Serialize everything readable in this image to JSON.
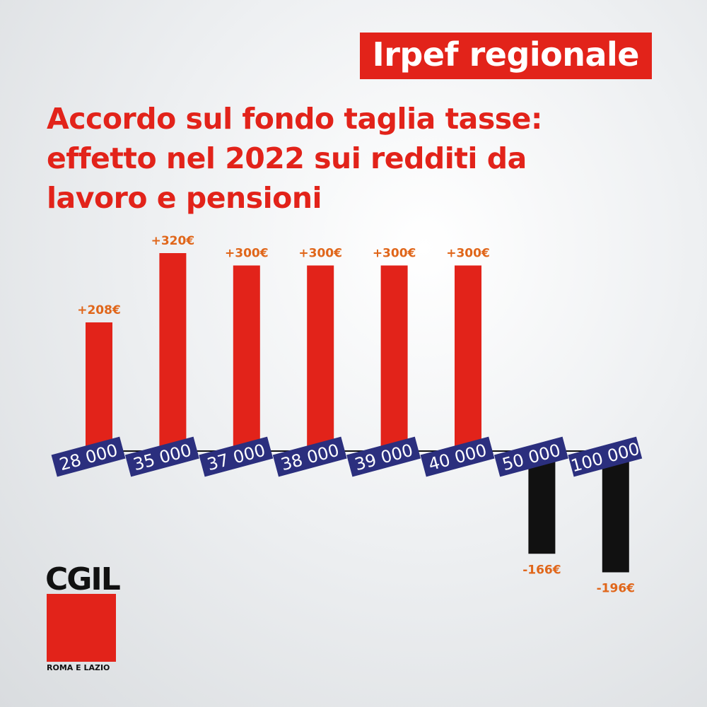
{
  "badge": "Irpef regionale",
  "logo": {
    "name": "CGIL",
    "subtitle": "ROMA E LAZIO"
  },
  "chart_data": {
    "type": "bar",
    "title": "Accordo sul fondo taglia tasse: effetto nel 2022 sui redditi da lavoro e pensioni",
    "categories": [
      "28 000",
      "35 000",
      "37 000",
      "38 000",
      "39 000",
      "40 000",
      "50 000",
      "100 000"
    ],
    "values": [
      208,
      320,
      300,
      300,
      300,
      300,
      -166,
      -196
    ],
    "value_labels": [
      "+208€",
      "+320€",
      "+300€",
      "+300€",
      "+300€",
      "+300€",
      "-166€",
      "-196€"
    ],
    "color": "#e2231a",
    "negative_color": "#111111",
    "label_color": "#2b2f7e"
  }
}
